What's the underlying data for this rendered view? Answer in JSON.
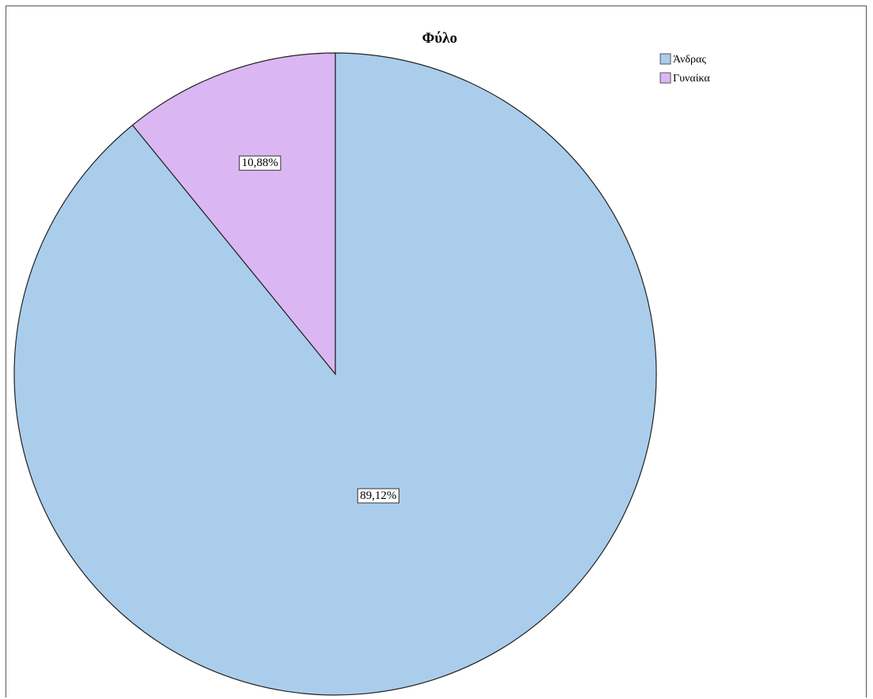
{
  "chart_data": {
    "type": "pie",
    "title": "Φύλο",
    "categories": [
      "Άνδρας",
      "Γυναίκα"
    ],
    "values": [
      89.12,
      10.88
    ],
    "data_labels": [
      "89,12%",
      "10,88%"
    ],
    "colors": [
      "#abcdec",
      "#dab7f2"
    ],
    "start_angle": "12 o'clock",
    "direction": "counterclockwise",
    "legend_position": "top-right",
    "legend": [
      {
        "label": "Άνδρας",
        "color": "#abcdec"
      },
      {
        "label": "Γυναίκα",
        "color": "#dab7f2"
      }
    ]
  }
}
